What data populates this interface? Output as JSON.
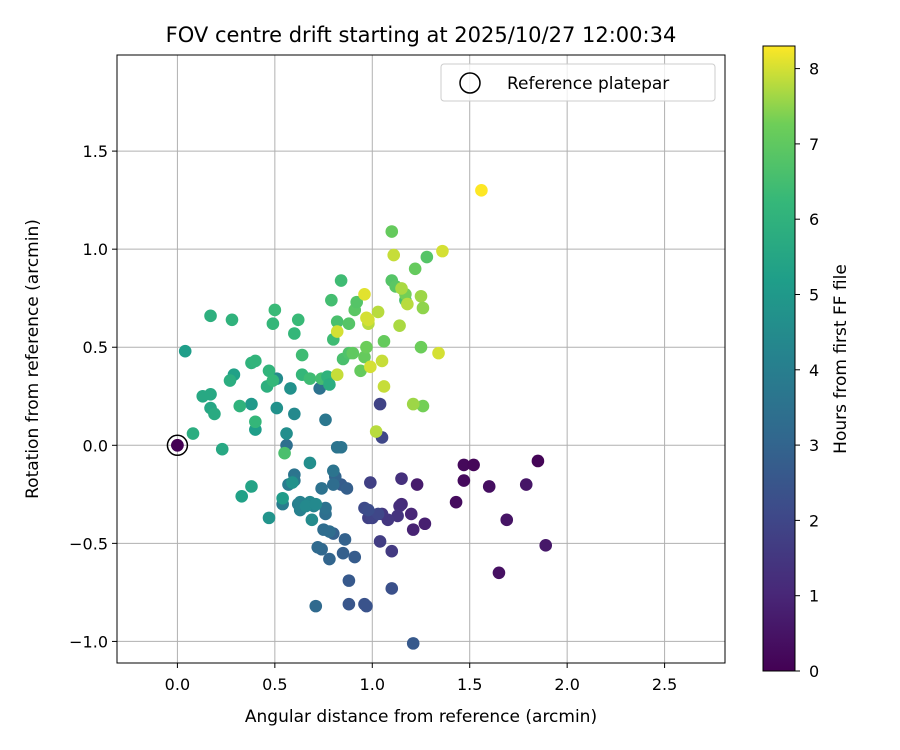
{
  "chart_data": {
    "type": "scatter",
    "title": "FOV centre drift starting at 2025/10/27 12:00:34",
    "xlabel": "Angular distance from reference (arcmin)",
    "ylabel": "Rotation from reference (arcmin)",
    "xlim": [
      -0.31,
      2.81
    ],
    "ylim": [
      -1.11,
      1.99
    ],
    "xticks": [
      0.0,
      0.5,
      1.0,
      1.5,
      2.0,
      2.5
    ],
    "xtick_labels": [
      "0.0",
      "0.5",
      "1.0",
      "1.5",
      "2.0",
      "2.5"
    ],
    "yticks": [
      -1.0,
      -0.5,
      0.0,
      0.5,
      1.0,
      1.5
    ],
    "ytick_labels": [
      "−1.0",
      "−0.5",
      "0.0",
      "0.5",
      "1.0",
      "1.5"
    ],
    "grid": true,
    "legend": {
      "position": "top-right",
      "label": "Reference platepar"
    },
    "reference_point": {
      "x": 0.0,
      "y": 0.0,
      "h": 0.0
    },
    "colorbar": {
      "label": "Hours from first FF file",
      "colormap": "viridis",
      "range": [
        0,
        8.3
      ],
      "ticks": [
        0,
        1,
        2,
        3,
        4,
        5,
        6,
        7,
        8
      ],
      "tick_labels": [
        "0",
        "1",
        "2",
        "3",
        "4",
        "5",
        "6",
        "7",
        "8"
      ]
    },
    "series": [
      {
        "name": "FOV centre drift",
        "fields": [
          "x",
          "y",
          "hours"
        ],
        "points": [
          [
            0.0,
            0.0,
            0.05
          ],
          [
            1.47,
            -0.1,
            0.2
          ],
          [
            1.47,
            -0.18,
            0.25
          ],
          [
            1.43,
            -0.29,
            0.3
          ],
          [
            1.52,
            -0.1,
            0.15
          ],
          [
            1.6,
            -0.21,
            0.35
          ],
          [
            1.65,
            -0.65,
            0.4
          ],
          [
            1.69,
            -0.38,
            0.5
          ],
          [
            1.79,
            -0.2,
            0.55
          ],
          [
            1.85,
            -0.08,
            0.1
          ],
          [
            1.89,
            -0.51,
            0.6
          ],
          [
            1.23,
            -0.2,
            0.7
          ],
          [
            1.27,
            -0.4,
            0.8
          ],
          [
            1.21,
            -0.43,
            0.9
          ],
          [
            1.2,
            -0.35,
            1.0
          ],
          [
            1.15,
            -0.3,
            1.1
          ],
          [
            1.14,
            -0.31,
            1.2
          ],
          [
            1.15,
            -0.17,
            1.3
          ],
          [
            1.13,
            -0.36,
            1.4
          ],
          [
            1.08,
            -0.38,
            1.5
          ],
          [
            1.05,
            -0.35,
            1.5
          ],
          [
            1.1,
            -0.54,
            1.6
          ],
          [
            1.04,
            -0.49,
            1.7
          ],
          [
            0.99,
            -0.19,
            1.8
          ],
          [
            0.98,
            -0.37,
            1.8
          ],
          [
            1.04,
            0.21,
            1.9
          ],
          [
            1.05,
            0.04,
            2.0
          ],
          [
            1.0,
            -0.37,
            1.9
          ],
          [
            1.03,
            -0.35,
            2.0
          ],
          [
            0.96,
            -0.32,
            2.1
          ],
          [
            0.98,
            -0.33,
            2.2
          ],
          [
            1.1,
            -0.73,
            2.3
          ],
          [
            0.96,
            -0.81,
            2.4
          ],
          [
            0.97,
            -0.82,
            2.4
          ],
          [
            1.21,
            -1.01,
            2.6
          ],
          [
            0.88,
            -0.81,
            2.5
          ],
          [
            0.88,
            -0.69,
            2.6
          ],
          [
            0.91,
            -0.57,
            2.7
          ],
          [
            0.85,
            -0.55,
            2.8
          ],
          [
            0.86,
            -0.48,
            2.9
          ],
          [
            0.8,
            -0.45,
            2.9
          ],
          [
            0.84,
            -0.2,
            2.7
          ],
          [
            0.87,
            -0.22,
            2.8
          ],
          [
            0.81,
            -0.16,
            3.0
          ],
          [
            0.78,
            -0.58,
            3.0
          ],
          [
            0.74,
            -0.53,
            3.1
          ],
          [
            0.72,
            -0.52,
            3.2
          ],
          [
            0.71,
            -0.82,
            3.2
          ],
          [
            0.75,
            -0.43,
            3.3
          ],
          [
            0.78,
            -0.44,
            3.3
          ],
          [
            0.8,
            -0.2,
            3.3
          ],
          [
            0.76,
            -0.35,
            3.4
          ],
          [
            0.76,
            -0.32,
            3.5
          ],
          [
            0.74,
            -0.22,
            3.5
          ],
          [
            0.8,
            -0.13,
            3.6
          ],
          [
            0.84,
            -0.01,
            3.6
          ],
          [
            0.82,
            -0.01,
            3.6
          ],
          [
            0.76,
            0.13,
            3.7
          ],
          [
            0.73,
            0.29,
            3.5
          ],
          [
            0.56,
            0.0,
            3.4
          ],
          [
            0.6,
            -0.15,
            3.6
          ],
          [
            0.6,
            -0.18,
            3.7
          ],
          [
            0.57,
            -0.2,
            3.9
          ],
          [
            0.54,
            -0.3,
            3.9
          ],
          [
            0.62,
            -0.3,
            4.0
          ],
          [
            0.63,
            -0.29,
            4.1
          ],
          [
            0.63,
            -0.33,
            4.1
          ],
          [
            0.7,
            -0.31,
            4.2
          ],
          [
            0.68,
            -0.29,
            4.3
          ],
          [
            0.66,
            -0.31,
            4.4
          ],
          [
            0.71,
            -0.3,
            4.4
          ],
          [
            0.69,
            -0.38,
            4.5
          ],
          [
            0.68,
            -0.09,
            4.6
          ],
          [
            0.59,
            -0.19,
            4.7
          ],
          [
            0.6,
            0.16,
            4.4
          ],
          [
            0.56,
            0.06,
            4.6
          ],
          [
            0.51,
            0.19,
            4.7
          ],
          [
            0.47,
            -0.37,
            4.8
          ],
          [
            0.51,
            0.34,
            4.5
          ],
          [
            0.58,
            0.29,
            4.7
          ],
          [
            0.54,
            -0.27,
            5.1
          ],
          [
            0.38,
            0.21,
            5.0
          ],
          [
            0.4,
            0.08,
            5.2
          ],
          [
            0.33,
            -0.26,
            5.3
          ],
          [
            0.38,
            -0.21,
            5.4
          ],
          [
            0.29,
            0.36,
            5.3
          ],
          [
            0.04,
            0.48,
            5.2
          ],
          [
            0.23,
            -0.02,
            5.6
          ],
          [
            0.17,
            0.19,
            5.5
          ],
          [
            0.13,
            0.25,
            5.6
          ],
          [
            0.17,
            0.26,
            5.6
          ],
          [
            0.19,
            0.16,
            5.7
          ],
          [
            0.08,
            0.06,
            5.8
          ],
          [
            0.17,
            0.66,
            5.9
          ],
          [
            0.28,
            0.64,
            6.0
          ],
          [
            0.27,
            0.33,
            5.8
          ],
          [
            0.32,
            0.2,
            6.0
          ],
          [
            0.38,
            0.42,
            6.0
          ],
          [
            0.4,
            0.43,
            6.1
          ],
          [
            0.4,
            0.12,
            6.2
          ],
          [
            0.46,
            0.3,
            5.9
          ],
          [
            0.47,
            0.38,
            6.1
          ],
          [
            0.49,
            0.33,
            6.2
          ],
          [
            0.49,
            0.62,
            6.2
          ],
          [
            0.5,
            0.69,
            6.3
          ],
          [
            0.55,
            -0.04,
            6.6
          ],
          [
            0.6,
            0.57,
            6.2
          ],
          [
            0.62,
            0.64,
            6.3
          ],
          [
            0.64,
            0.46,
            6.4
          ],
          [
            0.64,
            0.36,
            6.2
          ],
          [
            0.68,
            0.34,
            6.4
          ],
          [
            0.74,
            0.34,
            6.5
          ],
          [
            0.77,
            0.35,
            6.0
          ],
          [
            0.78,
            0.31,
            5.8
          ],
          [
            0.8,
            0.54,
            6.4
          ],
          [
            0.79,
            0.74,
            6.5
          ],
          [
            0.82,
            0.63,
            6.6
          ],
          [
            0.84,
            0.84,
            6.4
          ],
          [
            0.85,
            0.44,
            6.6
          ],
          [
            0.88,
            0.47,
            6.7
          ],
          [
            0.88,
            0.62,
            6.8
          ],
          [
            0.9,
            0.47,
            7.0
          ],
          [
            0.91,
            0.69,
            6.9
          ],
          [
            0.92,
            0.73,
            6.8
          ],
          [
            0.94,
            0.38,
            7.1
          ],
          [
            0.96,
            0.45,
            7.1
          ],
          [
            0.97,
            0.5,
            7.2
          ],
          [
            1.06,
            0.53,
            7.1
          ],
          [
            1.1,
            0.84,
            6.8
          ],
          [
            1.12,
            0.81,
            6.9
          ],
          [
            1.17,
            0.74,
            6.6
          ],
          [
            1.1,
            1.09,
            7.1
          ],
          [
            1.17,
            0.77,
            7.3
          ],
          [
            1.22,
            0.9,
            7.1
          ],
          [
            1.25,
            0.5,
            7.2
          ],
          [
            1.28,
            0.96,
            6.8
          ],
          [
            1.26,
            0.2,
            7.3
          ],
          [
            1.25,
            0.76,
            7.6
          ],
          [
            1.26,
            0.7,
            7.5
          ],
          [
            1.21,
            0.21,
            7.6
          ],
          [
            1.15,
            0.8,
            7.7
          ],
          [
            1.18,
            0.72,
            7.8
          ],
          [
            1.14,
            0.61,
            7.7
          ],
          [
            1.11,
            0.97,
            7.9
          ],
          [
            1.06,
            0.3,
            7.9
          ],
          [
            1.05,
            0.43,
            7.9
          ],
          [
            1.03,
            0.68,
            7.8
          ],
          [
            1.02,
            0.07,
            7.8
          ],
          [
            0.99,
            0.4,
            8.0
          ],
          [
            0.98,
            0.62,
            7.8
          ],
          [
            0.97,
            0.65,
            8.0
          ],
          [
            0.96,
            0.77,
            8.1
          ],
          [
            0.82,
            0.36,
            7.9
          ],
          [
            0.82,
            0.58,
            8.0
          ],
          [
            0.98,
            0.64,
            8.0
          ],
          [
            1.34,
            0.47,
            8.0
          ],
          [
            1.36,
            0.99,
            8.0
          ],
          [
            1.56,
            1.3,
            8.3
          ]
        ]
      }
    ]
  }
}
